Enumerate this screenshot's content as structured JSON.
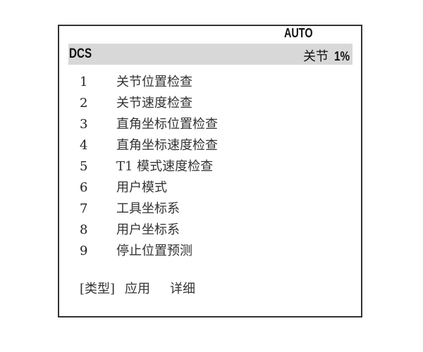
{
  "header": {
    "mode": "AUTO",
    "title": "DCS",
    "status_label": "关节",
    "status_value": "1%"
  },
  "menu": {
    "items": [
      {
        "num": "1",
        "label": "关节位置检查"
      },
      {
        "num": "2",
        "label": "关节速度检查"
      },
      {
        "num": "3",
        "label": "直角坐标位置检查"
      },
      {
        "num": "4",
        "label": "直角坐标速度检查"
      },
      {
        "num": "5",
        "label": "T1 模式速度检查"
      },
      {
        "num": "6",
        "label": "用户模式"
      },
      {
        "num": "7",
        "label": "工具坐标系"
      },
      {
        "num": "8",
        "label": "用户坐标系"
      },
      {
        "num": "9",
        "label": "停止位置预测"
      }
    ]
  },
  "footer": {
    "type_label": "[类型]",
    "apply_label": "应用",
    "detail_label": "详细"
  }
}
